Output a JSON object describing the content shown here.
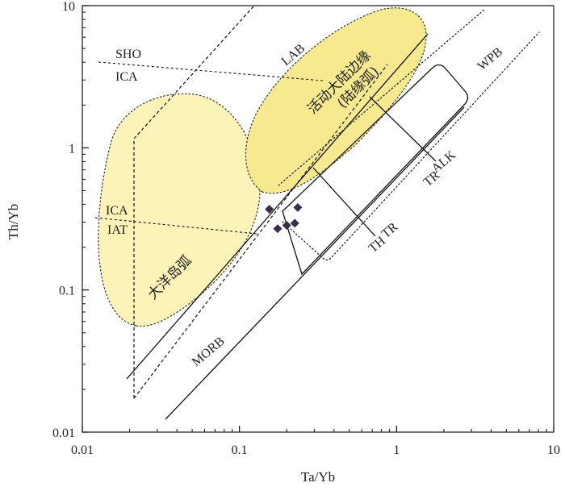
{
  "chart_data": {
    "type": "scatter",
    "xlabel": "Ta/Yb",
    "ylabel": "Th/Yb",
    "xscale": "log",
    "yscale": "log",
    "xlim": [
      0.01,
      10
    ],
    "ylim": [
      0.01,
      10
    ],
    "x_ticks": [
      "0.01",
      "0.1",
      "1",
      "10"
    ],
    "y_ticks": [
      "0.01",
      "0.1",
      "1",
      "10"
    ],
    "grid": false,
    "series": [
      {
        "marker": "diamond",
        "color": "#3b2d4f",
        "points": [
          {
            "x": 0.155,
            "y": 0.37
          },
          {
            "x": 0.235,
            "y": 0.38
          },
          {
            "x": 0.175,
            "y": 0.27
          },
          {
            "x": 0.2,
            "y": 0.285
          },
          {
            "x": 0.225,
            "y": 0.295
          }
        ]
      }
    ],
    "regions": [
      {
        "label": "大洋岛弧",
        "fill": "#fbf3b8"
      },
      {
        "label": "活动大陆边缘 (陆缘弧)",
        "fill": "#f6e98e"
      }
    ],
    "annotations": {
      "sho": "SHO",
      "ica_top": "ICA",
      "ica_mid": "ICA",
      "iat": "IAT",
      "lab": "LAB",
      "wpb": "WPB",
      "alk": "ALK",
      "tr_upper": "TR",
      "tr_lower": "TR",
      "th": "TH",
      "morb": "MORB",
      "active_margin_line1": "活动大陆边缘",
      "active_margin_line2": "(陆缘弧)",
      "oceanic_arc": "大洋岛弧"
    }
  }
}
